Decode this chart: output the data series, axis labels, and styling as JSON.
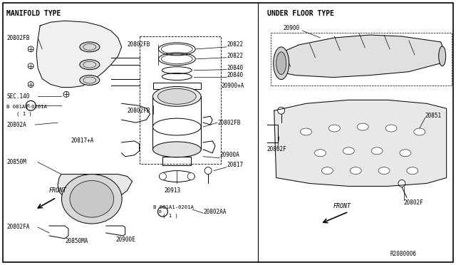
{
  "background_color": "#ffffff",
  "line_color": "#000000",
  "fig_width": 6.4,
  "fig_height": 3.72,
  "dpi": 100,
  "manifold_type": "MANIFOLD TYPE",
  "under_floor_type": "UNDER FLOOR TYPE",
  "ref_code": "R2080006"
}
